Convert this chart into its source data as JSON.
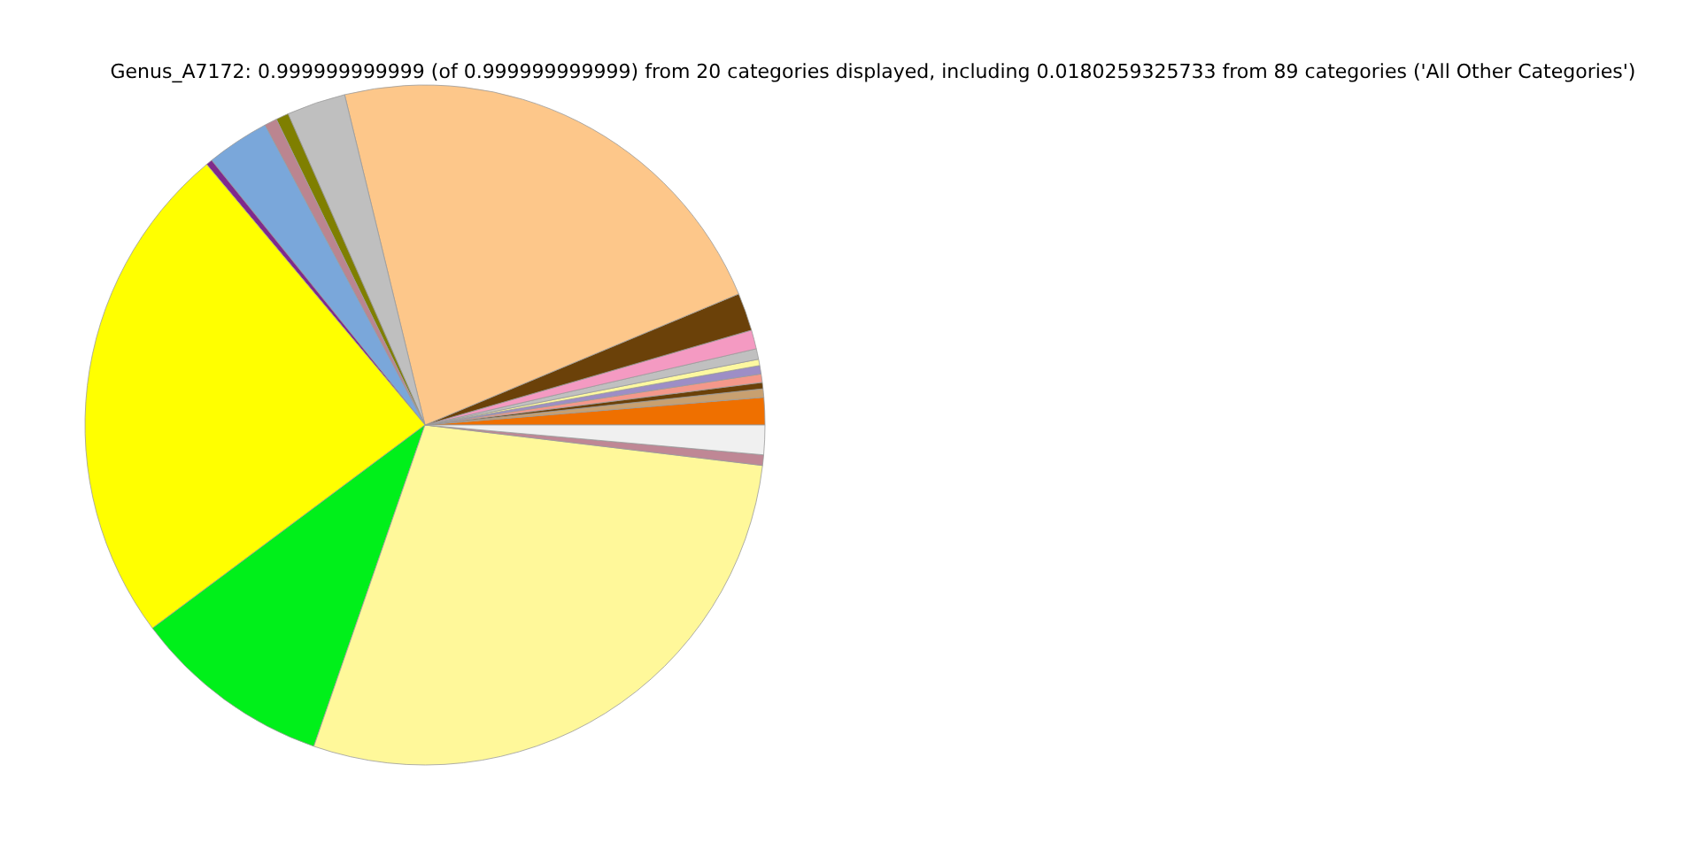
{
  "chart_data": {
    "type": "pie",
    "title": "Genus_A7172: 0.999999999999 (of 0.999999999999) from 20 categories displayed, including 0.0180259325733 from 89 categories ('All Other Categories')",
    "categories": [
      null,
      null,
      null,
      null,
      null,
      null,
      null,
      null,
      null,
      null,
      null,
      null,
      null,
      null,
      null,
      null,
      null,
      null,
      null,
      null
    ],
    "values": [
      1.3,
      0.4,
      0.3,
      0.4,
      0.4,
      0.3,
      0.5,
      0.9,
      1.8,
      22.5,
      2.8,
      0.6,
      0.6,
      3.0,
      0.3,
      24.1,
      9.5,
      28.4,
      0.5,
      1.4
    ],
    "colors": [
      "#ef7000",
      "#c8a070",
      "#6b4109",
      "#f4988a",
      "#9d8ec6",
      "#fdf8a0",
      "#c0c0c0",
      "#f49ac2",
      "#6b4109",
      "#fdc78a",
      "#bfbfbf",
      "#7f7f00",
      "#bb8590",
      "#7aa7da",
      "#7f2a8c",
      "#ffff00",
      "#00f01a",
      "#fff89a",
      "#bf8795",
      "#f0f0f0"
    ]
  }
}
